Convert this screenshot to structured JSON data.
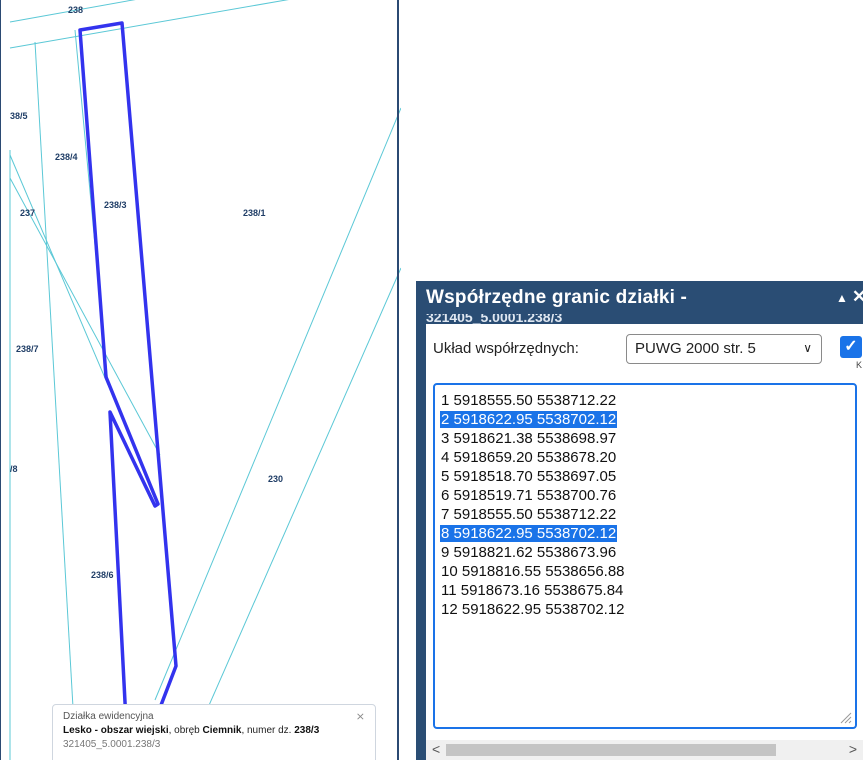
{
  "map": {
    "labels": {
      "top": "238",
      "p238_5": "38/5",
      "p238_4": "238/4",
      "p237": "237",
      "p238_3": "238/3",
      "p238_1": "238/1",
      "p238_7": "238/7",
      "p238_8": "/8",
      "p230": "230",
      "p238_6": "238/6"
    },
    "colors": {
      "parcel_lines": "#5bc8d6",
      "selected_boundary": "#3333ee",
      "border": "#2b4a73"
    },
    "popup": {
      "title": "Działka ewidencyjna",
      "place": "Lesko - obszar wiejski",
      "sep1": ", obręb ",
      "precinct": "Ciemnik",
      "sep2": ", numer dz. ",
      "number": "238/3",
      "id": "321405_5.0001.238/3",
      "close_icon": "close-x-icon"
    }
  },
  "dialog": {
    "title": "Współrzędne granic działki -",
    "title_cut": "321405_5.0001.238/3",
    "collapse_icon": "triangle-up-icon",
    "close_icon": "close-x-icon",
    "crs_label": "Układ współrzędnych:",
    "crs_value": "PUWG 2000 str. 5",
    "crs_checked": true,
    "crs_check_tail": "K",
    "coordinates": [
      {
        "text": "1 5918555.50 5538712.22",
        "selected": false
      },
      {
        "text": "2 5918622.95 5538702.12",
        "selected": true
      },
      {
        "text": "3 5918621.38 5538698.97",
        "selected": false
      },
      {
        "text": "4 5918659.20 5538678.20",
        "selected": false
      },
      {
        "text": "5 5918518.70 5538697.05",
        "selected": false
      },
      {
        "text": "6 5918519.71 5538700.76",
        "selected": false
      },
      {
        "text": "7 5918555.50 5538712.22",
        "selected": false
      },
      {
        "text": "8 5918622.95 5538702.12",
        "selected": true
      },
      {
        "text": "9 5918821.62 5538673.96",
        "selected": false
      },
      {
        "text": "10 5918816.55 5538656.88",
        "selected": false
      },
      {
        "text": "11 5918673.16 5538675.84",
        "selected": false
      },
      {
        "text": "12 5918622.95 5538702.12",
        "selected": false
      }
    ],
    "scroll_left": "<",
    "scroll_right": ">",
    "colors": {
      "titlebar": "#2a4d74",
      "selection": "#1a73e8"
    }
  }
}
